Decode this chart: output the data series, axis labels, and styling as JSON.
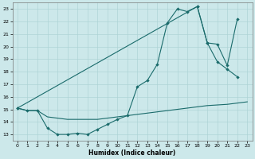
{
  "xlabel": "Humidex (Indice chaleur)",
  "bg_color": "#cce8ea",
  "line_color": "#1a6b6b",
  "grid_color": "#aed4d6",
  "xlim": [
    -0.5,
    23.5
  ],
  "ylim": [
    12.5,
    23.5
  ],
  "yticks": [
    13,
    14,
    15,
    16,
    17,
    18,
    19,
    20,
    21,
    22,
    23
  ],
  "xticks": [
    0,
    1,
    2,
    3,
    4,
    5,
    6,
    7,
    8,
    9,
    10,
    11,
    12,
    13,
    14,
    15,
    16,
    17,
    18,
    19,
    20,
    21,
    22,
    23
  ],
  "line1_x": [
    0,
    1,
    2,
    3,
    4,
    5,
    6,
    7,
    8,
    9,
    10,
    11,
    12,
    13,
    14,
    15,
    16,
    17,
    18,
    19,
    20,
    21,
    22
  ],
  "line1_y": [
    15.1,
    14.9,
    14.9,
    13.5,
    13.0,
    13.0,
    13.1,
    13.0,
    13.4,
    13.8,
    14.2,
    14.5,
    16.8,
    17.3,
    18.6,
    21.9,
    23.0,
    22.8,
    23.2,
    20.3,
    18.8,
    18.2,
    17.6
  ],
  "line2_x": [
    0,
    18,
    19,
    20,
    21,
    22
  ],
  "line2_y": [
    15.1,
    23.2,
    20.3,
    20.2,
    18.5,
    22.2
  ],
  "line3_x": [
    0,
    1,
    2,
    3,
    4,
    5,
    6,
    7,
    8,
    9,
    10,
    11,
    12,
    13,
    14,
    15,
    16,
    17,
    18,
    19,
    20,
    21,
    22,
    23
  ],
  "line3_y": [
    15.1,
    14.9,
    14.9,
    14.4,
    14.3,
    14.2,
    14.2,
    14.2,
    14.2,
    14.3,
    14.4,
    14.5,
    14.6,
    14.7,
    14.8,
    14.9,
    15.0,
    15.1,
    15.2,
    15.3,
    15.35,
    15.4,
    15.5,
    15.6
  ]
}
